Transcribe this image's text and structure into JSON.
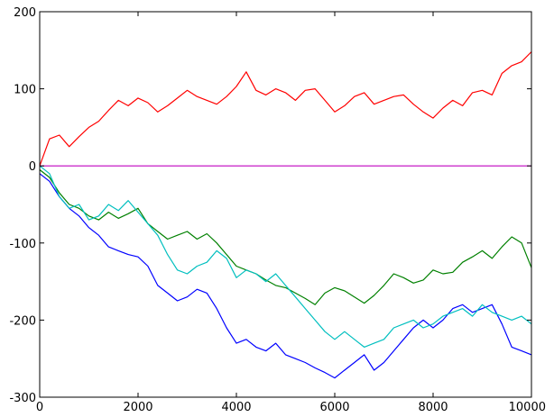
{
  "chart_data": {
    "type": "line",
    "title": "",
    "xlabel": "",
    "ylabel": "",
    "xlim": [
      0,
      10000
    ],
    "ylim": [
      -300,
      200
    ],
    "xticks": [
      0,
      2000,
      4000,
      6000,
      8000,
      10000
    ],
    "yticks": [
      200,
      100,
      0,
      -100,
      -200,
      -300
    ],
    "xtick_labels": [
      "0",
      "2000",
      "4000",
      "6000",
      "8000",
      "10000"
    ],
    "ytick_labels": [
      "200",
      "100",
      "0",
      "-100",
      "-200",
      "-300"
    ],
    "grid": false,
    "legend": "none",
    "series": [
      {
        "color": "#ff0000",
        "x": [
          0,
          200,
          400,
          600,
          800,
          1000,
          1200,
          1400,
          1600,
          1800,
          2000,
          2200,
          2400,
          2600,
          2800,
          3000,
          3200,
          3400,
          3600,
          3800,
          4000,
          4200,
          4400,
          4600,
          4800,
          5000,
          5200,
          5400,
          5600,
          5800,
          6000,
          6200,
          6400,
          6600,
          6800,
          7000,
          7200,
          7400,
          7600,
          7800,
          8000,
          8200,
          8400,
          8600,
          8800,
          9000,
          9200,
          9400,
          9600,
          9800,
          10000
        ],
        "y": [
          0,
          35,
          40,
          25,
          38,
          50,
          58,
          72,
          85,
          78,
          88,
          82,
          70,
          78,
          88,
          98,
          90,
          85,
          80,
          90,
          103,
          122,
          98,
          92,
          100,
          95,
          85,
          98,
          100,
          85,
          70,
          78,
          90,
          95,
          80,
          85,
          90,
          92,
          80,
          70,
          62,
          75,
          85,
          78,
          95,
          98,
          92,
          120,
          130,
          135,
          148
        ]
      },
      {
        "color": "#0000ff",
        "x": [
          0,
          200,
          400,
          600,
          800,
          1000,
          1200,
          1400,
          1600,
          1800,
          2000,
          2200,
          2400,
          2600,
          2800,
          3000,
          3200,
          3400,
          3600,
          3800,
          4000,
          4200,
          4400,
          4600,
          4800,
          5000,
          5200,
          5400,
          5600,
          5800,
          6000,
          6200,
          6400,
          6600,
          6800,
          7000,
          7200,
          7400,
          7600,
          7800,
          8000,
          8200,
          8400,
          8600,
          8800,
          9000,
          9200,
          9400,
          9600,
          9800,
          10000
        ],
        "y": [
          -10,
          -20,
          -40,
          -55,
          -65,
          -80,
          -90,
          -105,
          -110,
          -115,
          -118,
          -130,
          -155,
          -165,
          -175,
          -170,
          -160,
          -165,
          -185,
          -210,
          -230,
          -225,
          -235,
          -240,
          -230,
          -245,
          -250,
          -255,
          -262,
          -268,
          -275,
          -265,
          -255,
          -245,
          -265,
          -255,
          -240,
          -225,
          -210,
          -200,
          -210,
          -200,
          -185,
          -180,
          -190,
          -185,
          -180,
          -205,
          -235,
          -240,
          -245
        ]
      },
      {
        "color": "#008000",
        "x": [
          0,
          200,
          400,
          600,
          800,
          1000,
          1200,
          1400,
          1600,
          1800,
          2000,
          2200,
          2400,
          2600,
          2800,
          3000,
          3200,
          3400,
          3600,
          3800,
          4000,
          4200,
          4400,
          4600,
          4800,
          5000,
          5200,
          5400,
          5600,
          5800,
          6000,
          6200,
          6400,
          6600,
          6800,
          7000,
          7200,
          7400,
          7600,
          7800,
          8000,
          8200,
          8400,
          8600,
          8800,
          9000,
          9200,
          9400,
          9600,
          9800,
          10000
        ],
        "y": [
          -5,
          -15,
          -35,
          -50,
          -55,
          -65,
          -70,
          -60,
          -68,
          -62,
          -55,
          -75,
          -85,
          -95,
          -90,
          -85,
          -95,
          -88,
          -100,
          -115,
          -130,
          -135,
          -140,
          -148,
          -155,
          -158,
          -165,
          -172,
          -180,
          -165,
          -158,
          -162,
          -170,
          -178,
          -168,
          -155,
          -140,
          -145,
          -152,
          -148,
          -135,
          -140,
          -138,
          -125,
          -118,
          -110,
          -120,
          -105,
          -92,
          -100,
          -132
        ]
      },
      {
        "color": "#00bfbf",
        "x": [
          0,
          200,
          400,
          600,
          800,
          1000,
          1200,
          1400,
          1600,
          1800,
          2000,
          2200,
          2400,
          2600,
          2800,
          3000,
          3200,
          3400,
          3600,
          3800,
          4000,
          4200,
          4400,
          4600,
          4800,
          5000,
          5200,
          5400,
          5600,
          5800,
          6000,
          6200,
          6400,
          6600,
          6800,
          7000,
          7200,
          7400,
          7600,
          7800,
          8000,
          8200,
          8400,
          8600,
          8800,
          9000,
          9200,
          9400,
          9600,
          9800,
          10000
        ],
        "y": [
          0,
          -10,
          -40,
          -55,
          -50,
          -70,
          -65,
          -50,
          -58,
          -45,
          -60,
          -75,
          -90,
          -115,
          -135,
          -140,
          -130,
          -125,
          -110,
          -120,
          -145,
          -135,
          -140,
          -150,
          -140,
          -155,
          -170,
          -185,
          -200,
          -215,
          -225,
          -215,
          -225,
          -235,
          -230,
          -225,
          -210,
          -205,
          -200,
          -210,
          -205,
          -195,
          -190,
          -185,
          -195,
          -180,
          -190,
          -195,
          -200,
          -195,
          -205
        ]
      },
      {
        "color": "#bf00bf",
        "x": [
          0,
          10000
        ],
        "y": [
          0,
          0
        ]
      }
    ]
  }
}
